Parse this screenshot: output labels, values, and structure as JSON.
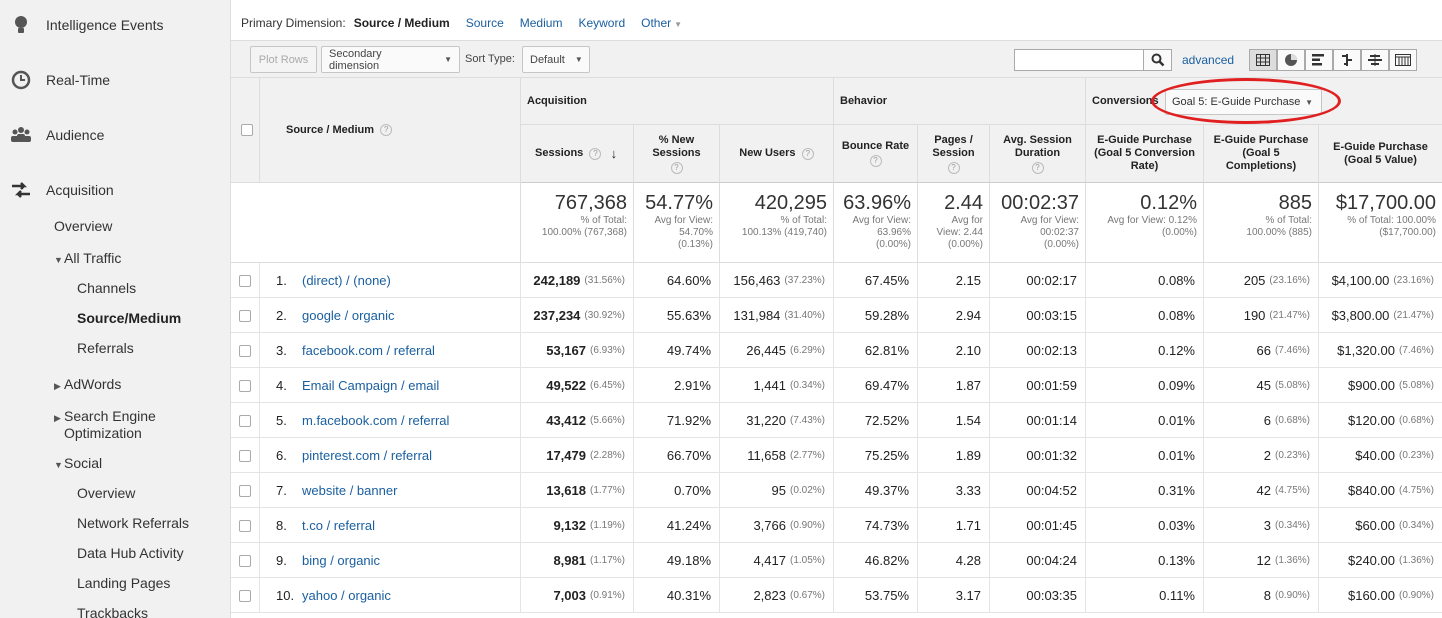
{
  "sidebar": {
    "top_items": [
      {
        "label": "Intelligence Events",
        "icon": "lightbulb-icon"
      },
      {
        "label": "Real-Time",
        "icon": "clock-icon"
      },
      {
        "label": "Audience",
        "icon": "people-icon"
      },
      {
        "label": "Acquisition",
        "icon": "arrows-icon"
      }
    ],
    "sub_items": {
      "overview": "Overview",
      "all_traffic": "All Traffic",
      "channels": "Channels",
      "source_medium": "Source/Medium",
      "referrals": "Referrals",
      "adwords": "AdWords",
      "seo_1": "Search Engine",
      "seo_2": "Optimization",
      "social": "Social",
      "social_overview": "Overview",
      "network_referrals": "Network Referrals",
      "data_hub": "Data Hub Activity",
      "landing_pages": "Landing Pages",
      "trackbacks": "Trackbacks"
    }
  },
  "primary_dimension": {
    "label": "Primary Dimension:",
    "current": "Source / Medium",
    "links": [
      "Source",
      "Medium",
      "Keyword",
      "Other"
    ]
  },
  "toolbar": {
    "plot_rows": "Plot Rows",
    "secondary_dimension": "Secondary dimension",
    "sort_type_label": "Sort Type:",
    "sort_type_value": "Default",
    "search_value": "",
    "advanced": "advanced"
  },
  "groups": {
    "acquisition": "Acquisition",
    "behavior": "Behavior",
    "conversions": "Conversions",
    "goal_select": "Goal 5: E-Guide Purchase"
  },
  "columns": {
    "source_medium": "Source / Medium",
    "sessions": "Sessions",
    "pct_new_sessions": "% New Sessions",
    "new_users": "New Users",
    "bounce_rate": "Bounce Rate",
    "pages_session": "Pages / Session",
    "avg_session_duration": "Avg. Session Duration",
    "goal_conv_rate": "E-Guide Purchase (Goal 5 Conversion Rate)",
    "goal_completions": "E-Guide Purchase (Goal 5 Completions)",
    "goal_value": "E-Guide Purchase (Goal 5 Value)"
  },
  "totals": {
    "sessions": {
      "big": "767,368",
      "sm1": "% of Total:",
      "sm2": "100.00% (767,368)"
    },
    "pct_new_sessions": {
      "big": "54.77%",
      "sm1": "Avg for View:",
      "sm2": "54.70%",
      "sm3": "(0.13%)"
    },
    "new_users": {
      "big": "420,295",
      "sm1": "% of Total:",
      "sm2": "100.13% (419,740)"
    },
    "bounce_rate": {
      "big": "63.96%",
      "sm1": "Avg for View:",
      "sm2": "63.96%",
      "sm3": "(0.00%)"
    },
    "pages_session": {
      "big": "2.44",
      "sm1": "Avg for",
      "sm2": "View: 2.44",
      "sm3": "(0.00%)"
    },
    "avg_session_duration": {
      "big": "00:02:37",
      "sm1": "Avg for View:",
      "sm2": "00:02:37",
      "sm3": "(0.00%)"
    },
    "goal_conv_rate": {
      "big": "0.12%",
      "sm1": "Avg for View: 0.12%",
      "sm2": "(0.00%)"
    },
    "goal_completions": {
      "big": "885",
      "sm1": "% of Total:",
      "sm2": "100.00% (885)"
    },
    "goal_value": {
      "big": "$17,700.00",
      "sm1": "% of Total: 100.00%",
      "sm2": "($17,700.00)"
    }
  },
  "rows": [
    {
      "n": "1.",
      "src": "(direct) / (none)",
      "sessions": "242,189",
      "sessions_pct": "(31.56%)",
      "new_sess": "64.60%",
      "new_users": "156,463",
      "new_users_pct": "(37.23%)",
      "bounce": "67.45%",
      "pages": "2.15",
      "dur": "00:02:17",
      "conv": "0.08%",
      "comp": "205",
      "comp_pct": "(23.16%)",
      "value": "$4,100.00",
      "value_pct": "(23.16%)"
    },
    {
      "n": "2.",
      "src": "google / organic",
      "sessions": "237,234",
      "sessions_pct": "(30.92%)",
      "new_sess": "55.63%",
      "new_users": "131,984",
      "new_users_pct": "(31.40%)",
      "bounce": "59.28%",
      "pages": "2.94",
      "dur": "00:03:15",
      "conv": "0.08%",
      "comp": "190",
      "comp_pct": "(21.47%)",
      "value": "$3,800.00",
      "value_pct": "(21.47%)"
    },
    {
      "n": "3.",
      "src": "facebook.com / referral",
      "sessions": "53,167",
      "sessions_pct": "(6.93%)",
      "new_sess": "49.74%",
      "new_users": "26,445",
      "new_users_pct": "(6.29%)",
      "bounce": "62.81%",
      "pages": "2.10",
      "dur": "00:02:13",
      "conv": "0.12%",
      "comp": "66",
      "comp_pct": "(7.46%)",
      "value": "$1,320.00",
      "value_pct": "(7.46%)"
    },
    {
      "n": "4.",
      "src": "Email Campaign / email",
      "sessions": "49,522",
      "sessions_pct": "(6.45%)",
      "new_sess": "2.91%",
      "new_users": "1,441",
      "new_users_pct": "(0.34%)",
      "bounce": "69.47%",
      "pages": "1.87",
      "dur": "00:01:59",
      "conv": "0.09%",
      "comp": "45",
      "comp_pct": "(5.08%)",
      "value": "$900.00",
      "value_pct": "(5.08%)"
    },
    {
      "n": "5.",
      "src": "m.facebook.com / referral",
      "sessions": "43,412",
      "sessions_pct": "(5.66%)",
      "new_sess": "71.92%",
      "new_users": "31,220",
      "new_users_pct": "(7.43%)",
      "bounce": "72.52%",
      "pages": "1.54",
      "dur": "00:01:14",
      "conv": "0.01%",
      "comp": "6",
      "comp_pct": "(0.68%)",
      "value": "$120.00",
      "value_pct": "(0.68%)"
    },
    {
      "n": "6.",
      "src": "pinterest.com / referral",
      "sessions": "17,479",
      "sessions_pct": "(2.28%)",
      "new_sess": "66.70%",
      "new_users": "11,658",
      "new_users_pct": "(2.77%)",
      "bounce": "75.25%",
      "pages": "1.89",
      "dur": "00:01:32",
      "conv": "0.01%",
      "comp": "2",
      "comp_pct": "(0.23%)",
      "value": "$40.00",
      "value_pct": "(0.23%)"
    },
    {
      "n": "7.",
      "src": "website / banner",
      "sessions": "13,618",
      "sessions_pct": "(1.77%)",
      "new_sess": "0.70%",
      "new_users": "95",
      "new_users_pct": "(0.02%)",
      "bounce": "49.37%",
      "pages": "3.33",
      "dur": "00:04:52",
      "conv": "0.31%",
      "comp": "42",
      "comp_pct": "(4.75%)",
      "value": "$840.00",
      "value_pct": "(4.75%)"
    },
    {
      "n": "8.",
      "src": "t.co / referral",
      "sessions": "9,132",
      "sessions_pct": "(1.19%)",
      "new_sess": "41.24%",
      "new_users": "3,766",
      "new_users_pct": "(0.90%)",
      "bounce": "74.73%",
      "pages": "1.71",
      "dur": "00:01:45",
      "conv": "0.03%",
      "comp": "3",
      "comp_pct": "(0.34%)",
      "value": "$60.00",
      "value_pct": "(0.34%)"
    },
    {
      "n": "9.",
      "src": "bing / organic",
      "sessions": "8,981",
      "sessions_pct": "(1.17%)",
      "new_sess": "49.18%",
      "new_users": "4,417",
      "new_users_pct": "(1.05%)",
      "bounce": "46.82%",
      "pages": "4.28",
      "dur": "00:04:24",
      "conv": "0.13%",
      "comp": "12",
      "comp_pct": "(1.36%)",
      "value": "$240.00",
      "value_pct": "(1.36%)"
    },
    {
      "n": "10.",
      "src": "yahoo / organic",
      "sessions": "7,003",
      "sessions_pct": "(0.91%)",
      "new_sess": "40.31%",
      "new_users": "2,823",
      "new_users_pct": "(0.67%)",
      "bounce": "53.75%",
      "pages": "3.17",
      "dur": "00:03:35",
      "conv": "0.11%",
      "comp": "8",
      "comp_pct": "(0.90%)",
      "value": "$160.00",
      "value_pct": "(0.90%)"
    }
  ]
}
